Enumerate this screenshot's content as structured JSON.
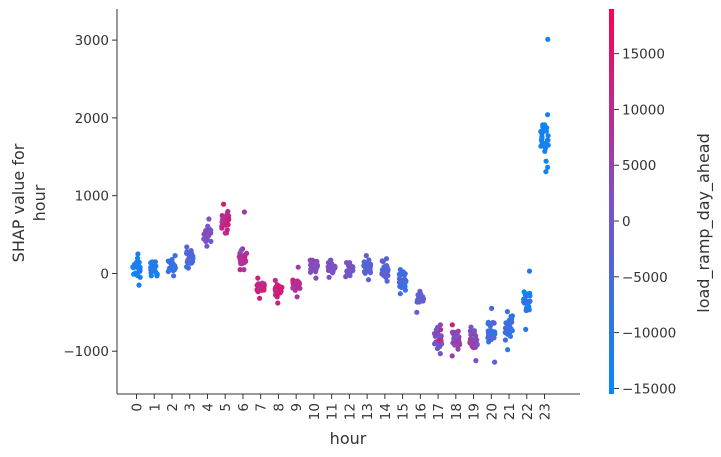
{
  "chart_data": {
    "type": "scatter",
    "title": "",
    "xlabel": "hour",
    "ylabel_lines": [
      "SHAP value for",
      "hour"
    ],
    "x_ticks": [
      "0",
      "1",
      "2",
      "3",
      "4",
      "5",
      "6",
      "7",
      "8",
      "9",
      "10",
      "11",
      "12",
      "13",
      "14",
      "15",
      "16",
      "17",
      "18",
      "19",
      "20",
      "21",
      "22",
      "23"
    ],
    "y_ticks": [
      -1000,
      0,
      1000,
      2000,
      3000
    ],
    "y_tick_labels": [
      "−1000",
      "0",
      "1000",
      "2000",
      "3000"
    ],
    "ylim": [
      -1550,
      3400
    ],
    "xlim": [
      -1.1,
      25.0
    ],
    "colorbar": {
      "label": "load_ramp_day_ahead",
      "range": [
        -15500,
        19000
      ],
      "ticks": [
        -15000,
        -10000,
        -5000,
        0,
        5000,
        10000,
        15000
      ],
      "tick_labels": [
        "−15000",
        "−10000",
        "−5000",
        "0",
        "5000",
        "10000",
        "15000"
      ],
      "color_low": "#008bfb",
      "color_mid": "#7c52c4",
      "color_high": "#ff0052"
    },
    "groups": [
      {
        "x": 0,
        "y_mean": 60,
        "y_spread": 90,
        "c_mean": -12000,
        "c_spread": 2500,
        "n": 28,
        "y_min": -150,
        "y_max": 250
      },
      {
        "x": 1,
        "y_mean": 50,
        "y_spread": 60,
        "c_mean": -11000,
        "c_spread": 2500,
        "n": 22,
        "y_min": -30,
        "y_max": 150
      },
      {
        "x": 2,
        "y_mean": 90,
        "y_spread": 70,
        "c_mean": -8000,
        "c_spread": 2500,
        "n": 24,
        "y_min": -30,
        "y_max": 230
      },
      {
        "x": 3,
        "y_mean": 200,
        "y_spread": 80,
        "c_mean": -5000,
        "c_spread": 2500,
        "n": 24,
        "y_min": 70,
        "y_max": 340
      },
      {
        "x": 4,
        "y_mean": 520,
        "y_spread": 90,
        "c_mean": 1500,
        "c_spread": 3000,
        "n": 26,
        "y_min": 350,
        "y_max": 700
      },
      {
        "x": 5,
        "y_mean": 680,
        "y_spread": 80,
        "c_mean": 11000,
        "c_spread": 3000,
        "n": 28,
        "y_min": 520,
        "y_max": 890
      },
      {
        "x": 6,
        "y_mean": 180,
        "y_spread": 80,
        "c_mean": 9000,
        "c_spread": 4000,
        "n": 26,
        "y_min": 50,
        "y_max": 790
      },
      {
        "x": 7,
        "y_mean": -170,
        "y_spread": 60,
        "c_mean": 12000,
        "c_spread": 3000,
        "n": 26,
        "y_min": -320,
        "y_max": -60
      },
      {
        "x": 8,
        "y_mean": -210,
        "y_spread": 60,
        "c_mean": 12500,
        "c_spread": 3000,
        "n": 28,
        "y_min": -380,
        "y_max": -90
      },
      {
        "x": 9,
        "y_mean": -140,
        "y_spread": 60,
        "c_mean": 9000,
        "c_spread": 3500,
        "n": 26,
        "y_min": -300,
        "y_max": 80
      },
      {
        "x": 10,
        "y_mean": 80,
        "y_spread": 60,
        "c_mean": 2500,
        "c_spread": 2500,
        "n": 26,
        "y_min": -60,
        "y_max": 170
      },
      {
        "x": 11,
        "y_mean": 70,
        "y_spread": 60,
        "c_mean": 2000,
        "c_spread": 2500,
        "n": 26,
        "y_min": -50,
        "y_max": 170
      },
      {
        "x": 12,
        "y_mean": 60,
        "y_spread": 60,
        "c_mean": 0,
        "c_spread": 3000,
        "n": 24,
        "y_min": -40,
        "y_max": 140
      },
      {
        "x": 13,
        "y_mean": 80,
        "y_spread": 70,
        "c_mean": -3000,
        "c_spread": 3000,
        "n": 28,
        "y_min": -80,
        "y_max": 230
      },
      {
        "x": 14,
        "y_mean": 60,
        "y_spread": 70,
        "c_mean": -3500,
        "c_spread": 3000,
        "n": 26,
        "y_min": -100,
        "y_max": 190
      },
      {
        "x": 15,
        "y_mean": -100,
        "y_spread": 70,
        "c_mean": -6000,
        "c_spread": 2500,
        "n": 26,
        "y_min": -260,
        "y_max": 50
      },
      {
        "x": 16,
        "y_mean": -330,
        "y_spread": 50,
        "c_mean": -1500,
        "c_spread": 3000,
        "n": 22,
        "y_min": -500,
        "y_max": -230
      },
      {
        "x": 17,
        "y_mean": -820,
        "y_spread": 100,
        "c_mean": 4000,
        "c_spread": 6000,
        "n": 30,
        "y_min": -1030,
        "y_max": -660
      },
      {
        "x": 18,
        "y_mean": -830,
        "y_spread": 100,
        "c_mean": 6000,
        "c_spread": 5000,
        "n": 30,
        "y_min": -1060,
        "y_max": -660
      },
      {
        "x": 19,
        "y_mean": -860,
        "y_spread": 100,
        "c_mean": 3500,
        "c_spread": 5000,
        "n": 28,
        "y_min": -1120,
        "y_max": -690
      },
      {
        "x": 20,
        "y_mean": -780,
        "y_spread": 130,
        "c_mean": -6000,
        "c_spread": 4000,
        "n": 26,
        "y_min": -1140,
        "y_max": -450
      },
      {
        "x": 21,
        "y_mean": -700,
        "y_spread": 120,
        "c_mean": -8000,
        "c_spread": 3500,
        "n": 26,
        "y_min": -980,
        "y_max": -490
      },
      {
        "x": 22,
        "y_mean": -350,
        "y_spread": 110,
        "c_mean": -10500,
        "c_spread": 4000,
        "n": 26,
        "y_min": -720,
        "y_max": 30
      },
      {
        "x": 23,
        "y_mean": 1720,
        "y_spread": 200,
        "c_mean": -12500,
        "c_spread": 1200,
        "n": 30,
        "y_min": 1310,
        "y_max": 3010
      }
    ]
  }
}
